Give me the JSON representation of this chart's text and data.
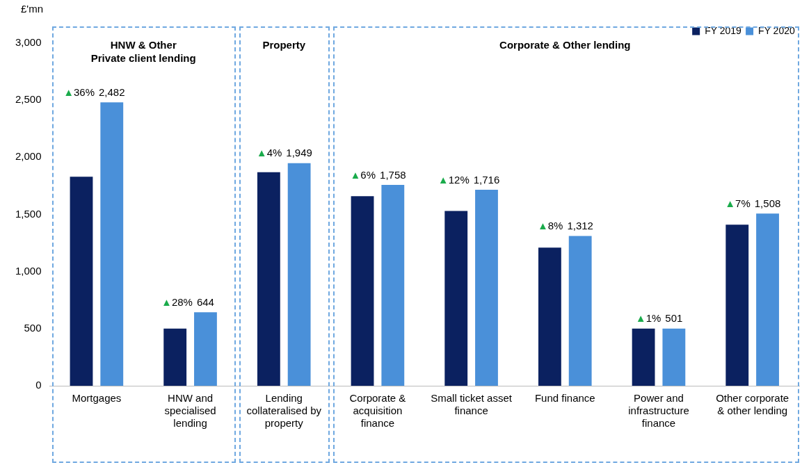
{
  "chart_data": {
    "type": "bar",
    "ylabel": "£'mn",
    "categories": [
      "Mortgages",
      "HNW and specialised lending",
      "Lending collateralised by property",
      "Corporate & acquisition finance",
      "Small ticket asset finance",
      "Fund finance",
      "Power and infrastructure finance",
      "Other corporate & other lending"
    ],
    "series": [
      {
        "name": "FY 2019",
        "color": "#0b2160",
        "values": [
          1830,
          500,
          1870,
          1660,
          1530,
          1210,
          500,
          1410
        ]
      },
      {
        "name": "FY 2020",
        "color": "#4a90d9",
        "values": [
          2482,
          644,
          1949,
          1758,
          1716,
          1312,
          501,
          1508
        ],
        "value_labels": [
          "2,482",
          "644",
          "1,949",
          "1,758",
          "1,716",
          "1,312",
          "501",
          "1,508"
        ]
      }
    ],
    "ylim": [
      0,
      3000
    ],
    "yticks": [
      0,
      500,
      {
        "value": 1000,
        "label": "1,000"
      },
      {
        "value": 1500,
        "label": "1,500"
      },
      {
        "value": 2000,
        "label": "2,000"
      },
      {
        "value": 2500,
        "label": "2,500"
      },
      {
        "value": 3000,
        "label": "3,000"
      }
    ],
    "grid": false,
    "legend": "top right",
    "annotations": [
      "HNW & Other\nPrivate client lending",
      "Property",
      "Corporate & Other lending",
      "▲36%",
      "▲28%",
      "▲4%",
      "▲6%",
      "▲12%",
      "▲8%",
      "▲1%",
      "▲7%"
    ]
  }
}
